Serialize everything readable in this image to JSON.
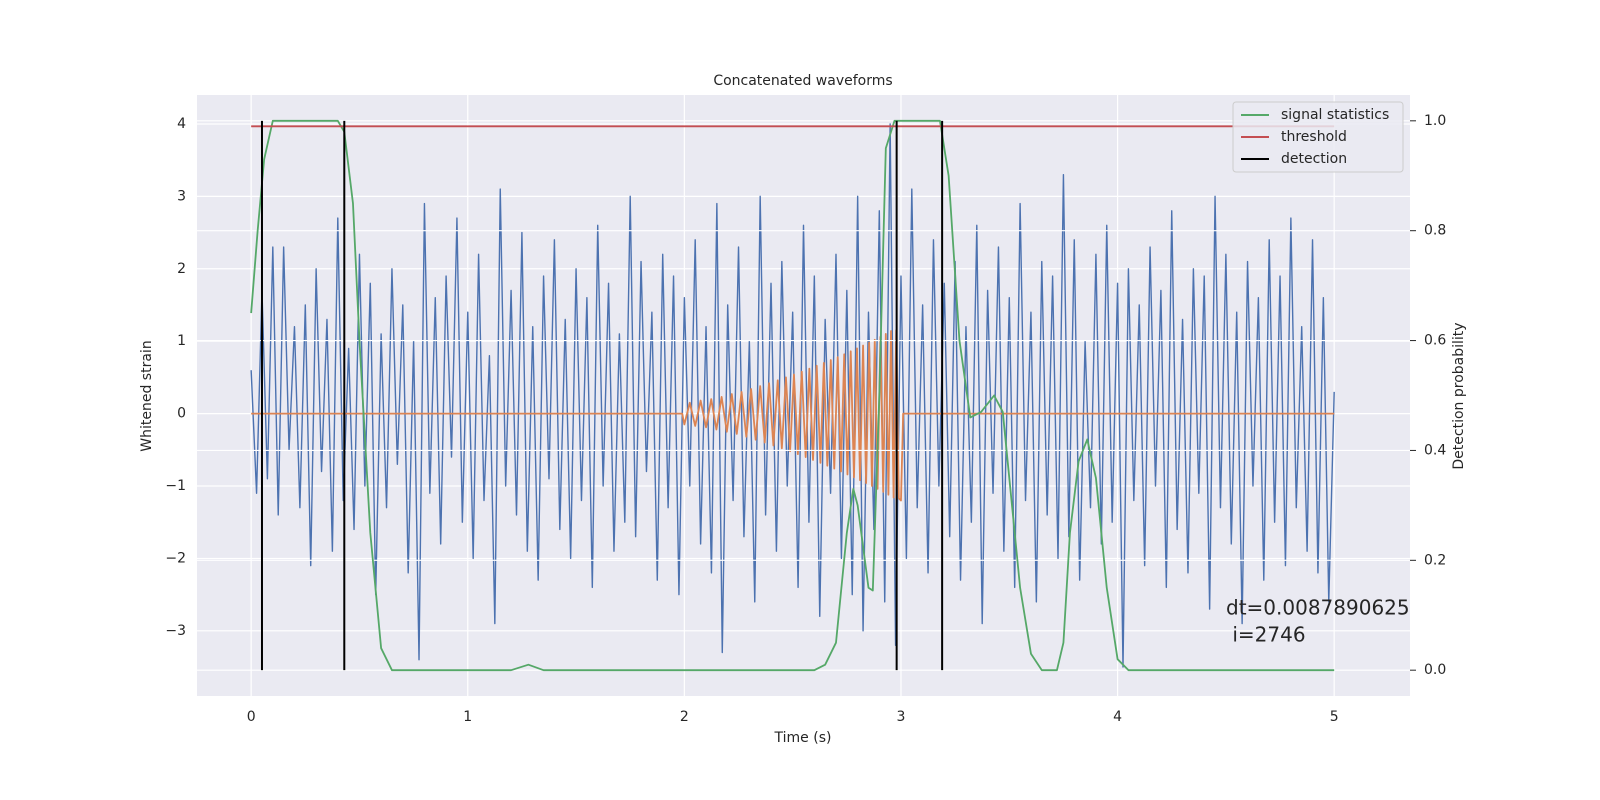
{
  "chart_data": {
    "type": "line",
    "title": "Concatenated waveforms",
    "xlabel": "Time (s)",
    "ylabel": "Whitened strain",
    "y2label": "Detection probability",
    "xlim": [
      -0.25,
      5.35
    ],
    "ylim": [
      -3.9,
      4.4
    ],
    "y2lim": [
      -0.047,
      1.047
    ],
    "xticks": [
      0,
      1,
      2,
      3,
      4,
      5
    ],
    "yticks": [
      {
        "value": -3,
        "label": "−3"
      },
      {
        "value": -2,
        "label": "−2"
      },
      {
        "value": -1,
        "label": "−1"
      },
      0,
      1,
      2,
      3,
      4
    ],
    "y2ticks": [
      {
        "value": 0,
        "label": "0.0"
      },
      {
        "value": 0.2,
        "label": "0.2"
      },
      {
        "value": 0.4,
        "label": "0.4"
      },
      {
        "value": 0.6,
        "label": "0.6"
      },
      {
        "value": 0.8,
        "label": "0.8"
      },
      {
        "value": 1,
        "label": "1.0"
      }
    ],
    "grid": true,
    "legend": "upper right",
    "annotation": [
      "dt=0.0087890625",
      " i=2746"
    ],
    "series": [
      {
        "color": "#4c72b0",
        "axis": "y",
        "x": [
          0,
          0.025,
          0.05,
          0.075,
          0.1,
          0.125,
          0.15,
          0.175,
          0.2,
          0.225,
          0.25,
          0.275,
          0.3,
          0.325,
          0.35,
          0.375,
          0.4,
          0.425,
          0.45,
          0.475,
          0.5,
          0.525,
          0.55,
          0.575,
          0.6,
          0.625,
          0.65,
          0.675,
          0.7,
          0.725,
          0.75,
          0.775,
          0.8,
          0.825,
          0.85,
          0.875,
          0.9,
          0.925,
          0.95,
          0.975,
          1,
          1.025,
          1.05,
          1.075,
          1.1,
          1.125,
          1.15,
          1.175,
          1.2,
          1.225,
          1.25,
          1.275,
          1.3,
          1.325,
          1.35,
          1.375,
          1.4,
          1.425,
          1.45,
          1.475,
          1.5,
          1.525,
          1.55,
          1.575,
          1.6,
          1.625,
          1.65,
          1.675,
          1.7,
          1.725,
          1.75,
          1.775,
          1.8,
          1.825,
          1.85,
          1.875,
          1.9,
          1.925,
          1.95,
          1.975,
          2,
          2.025,
          2.05,
          2.075,
          2.1,
          2.125,
          2.15,
          2.175,
          2.2,
          2.225,
          2.25,
          2.275,
          2.3,
          2.325,
          2.35,
          2.375,
          2.4,
          2.425,
          2.45,
          2.475,
          2.5,
          2.525,
          2.55,
          2.575,
          2.6,
          2.625,
          2.65,
          2.675,
          2.7,
          2.725,
          2.75,
          2.775,
          2.8,
          2.825,
          2.85,
          2.875,
          2.9,
          2.925,
          2.95,
          2.975,
          3,
          3.025,
          3.05,
          3.075,
          3.1,
          3.125,
          3.15,
          3.175,
          3.2,
          3.225,
          3.25,
          3.275,
          3.3,
          3.325,
          3.35,
          3.375,
          3.4,
          3.425,
          3.45,
          3.475,
          3.5,
          3.525,
          3.55,
          3.575,
          3.6,
          3.625,
          3.65,
          3.675,
          3.7,
          3.725,
          3.75,
          3.775,
          3.8,
          3.825,
          3.85,
          3.875,
          3.9,
          3.925,
          3.95,
          3.975,
          4,
          4.025,
          4.05,
          4.075,
          4.1,
          4.125,
          4.15,
          4.175,
          4.2,
          4.225,
          4.25,
          4.275,
          4.3,
          4.325,
          4.35,
          4.375,
          4.4,
          4.425,
          4.45,
          4.475,
          4.5,
          4.525,
          4.55,
          4.575,
          4.6,
          4.625,
          4.65,
          4.675,
          4.7,
          4.725,
          4.75,
          4.775,
          4.8,
          4.825,
          4.85,
          4.875,
          4.9,
          4.925,
          4.95,
          4.975,
          5
        ],
        "values": [
          0.6,
          -1.1,
          1.7,
          -0.9,
          2.3,
          -1.4,
          2.3,
          -0.5,
          1.2,
          -1.3,
          1.5,
          -2.1,
          2.0,
          -0.8,
          1.3,
          -1.9,
          2.7,
          -1.2,
          0.9,
          -1.6,
          2.2,
          -1.0,
          1.8,
          -2.5,
          1.1,
          -1.3,
          2.0,
          -0.7,
          1.5,
          -2.2,
          1.0,
          -3.4,
          2.9,
          -1.1,
          1.6,
          -1.8,
          1.9,
          -0.6,
          2.7,
          -1.5,
          1.4,
          -2.0,
          2.2,
          -1.2,
          0.8,
          -2.9,
          3.1,
          -1.0,
          1.7,
          -1.4,
          2.5,
          -1.9,
          1.2,
          -2.3,
          1.9,
          -0.9,
          2.4,
          -1.6,
          1.3,
          -2.0,
          2.0,
          -1.2,
          1.6,
          -2.4,
          2.6,
          -1.0,
          1.8,
          -1.9,
          1.1,
          -1.5,
          3.0,
          -1.7,
          2.1,
          -0.8,
          1.4,
          -2.3,
          2.2,
          -1.3,
          1.9,
          -2.5,
          1.6,
          -1.0,
          2.4,
          -1.8,
          1.2,
          -2.2,
          2.9,
          -3.3,
          1.5,
          -1.2,
          2.3,
          -1.7,
          1.0,
          -2.6,
          3.0,
          -1.4,
          1.8,
          -1.9,
          2.1,
          -1.0,
          1.4,
          -2.4,
          2.6,
          -1.5,
          1.9,
          -2.8,
          1.3,
          -1.1,
          2.2,
          -2.0,
          1.7,
          -2.5,
          3.0,
          -3.0,
          1.4,
          -1.6,
          2.8,
          -2.6,
          4.0,
          -3.2,
          1.9,
          -2.0,
          3.1,
          -1.3,
          1.5,
          -2.2,
          2.4,
          -1.0,
          1.8,
          -1.7,
          2.1,
          -2.3,
          1.2,
          -1.5,
          2.6,
          -2.9,
          1.7,
          -1.1,
          2.3,
          -1.9,
          1.6,
          -2.4,
          2.9,
          -1.2,
          1.4,
          -2.6,
          2.1,
          -1.4,
          1.9,
          -2.0,
          3.3,
          -1.7,
          2.4,
          -2.3,
          1.0,
          -1.3,
          2.2,
          -1.8,
          2.6,
          -1.5,
          1.8,
          -3.5,
          2.0,
          -1.2,
          1.5,
          -2.1,
          2.3,
          -1.0,
          1.7,
          -2.4,
          2.8,
          -1.6,
          1.3,
          -2.2,
          2.0,
          -1.1,
          1.9,
          -2.7,
          3.0,
          -1.3,
          2.2,
          -1.8,
          1.4,
          -2.9,
          2.1,
          -1.0,
          1.6,
          -2.3,
          2.4,
          -1.5,
          1.9,
          -2.1,
          2.7,
          -1.3,
          1.2,
          -1.9,
          2.4,
          -2.2,
          1.6,
          -2.6,
          0.3
        ]
      },
      {
        "color": "#dd8452",
        "axis": "y",
        "x": [
          0,
          1.99,
          2.0,
          2.025,
          2.05,
          2.075,
          2.1,
          2.124,
          2.148,
          2.172,
          2.196,
          2.219,
          2.242,
          2.264,
          2.286,
          2.308,
          2.329,
          2.35,
          2.371,
          2.391,
          2.411,
          2.431,
          2.45,
          2.469,
          2.488,
          2.506,
          2.524,
          2.542,
          2.56,
          2.577,
          2.594,
          2.611,
          2.628,
          2.644,
          2.66,
          2.676,
          2.692,
          2.708,
          2.723,
          2.738,
          2.753,
          2.768,
          2.783,
          2.797,
          2.811,
          2.825,
          2.839,
          2.853,
          2.866,
          2.879,
          2.892,
          2.905,
          2.918,
          2.93,
          2.942,
          2.954,
          2.966,
          2.978,
          2.99,
          3.0,
          3.01,
          5
        ],
        "values": [
          0,
          0,
          -0.15,
          0.15,
          -0.17,
          0.18,
          -0.19,
          0.2,
          -0.22,
          0.23,
          -0.25,
          0.27,
          -0.28,
          0.3,
          -0.32,
          0.34,
          -0.36,
          0.38,
          -0.4,
          0.42,
          -0.44,
          0.46,
          -0.48,
          0.5,
          -0.52,
          0.54,
          -0.56,
          0.58,
          -0.6,
          0.62,
          -0.64,
          0.66,
          -0.68,
          0.7,
          -0.72,
          0.74,
          -0.76,
          0.78,
          -0.8,
          0.82,
          -0.84,
          0.86,
          -0.88,
          0.9,
          -0.92,
          0.94,
          -0.96,
          0.98,
          -1.0,
          1.02,
          -1.04,
          1.06,
          -1.08,
          1.1,
          -1.12,
          1.14,
          -1.16,
          1.15,
          -1.17,
          -1.2,
          0,
          0
        ]
      },
      {
        "name": "signal statistics",
        "color": "#55a868",
        "axis": "y2",
        "x": [
          0,
          0.03,
          0.06,
          0.1,
          0.2,
          0.4,
          0.43,
          0.47,
          0.5,
          0.55,
          0.6,
          0.65,
          0.8,
          1.2,
          1.28,
          1.35,
          2.0,
          2.6,
          2.65,
          2.7,
          2.75,
          2.78,
          2.8,
          2.85,
          2.87,
          2.9,
          2.93,
          2.97,
          3.1,
          3.18,
          3.22,
          3.27,
          3.32,
          3.37,
          3.43,
          3.47,
          3.5,
          3.55,
          3.6,
          3.65,
          3.72,
          3.75,
          3.78,
          3.82,
          3.86,
          3.9,
          3.95,
          4.0,
          4.05,
          4.2,
          5.0
        ],
        "values": [
          0.65,
          0.8,
          0.93,
          1.0,
          1.0,
          1.0,
          0.98,
          0.85,
          0.6,
          0.25,
          0.04,
          0.0,
          0.0,
          0.0,
          0.01,
          0.0,
          0.0,
          0.0,
          0.01,
          0.05,
          0.25,
          0.33,
          0.3,
          0.15,
          0.145,
          0.5,
          0.95,
          1.0,
          1.0,
          1.0,
          0.9,
          0.6,
          0.46,
          0.47,
          0.5,
          0.47,
          0.35,
          0.15,
          0.03,
          0.0,
          0.0,
          0.05,
          0.25,
          0.38,
          0.42,
          0.35,
          0.15,
          0.02,
          0.0,
          0.0,
          0.0
        ]
      },
      {
        "name": "threshold",
        "color": "#c44e52",
        "axis": "y2",
        "x": [
          0,
          5
        ],
        "values": [
          0.99,
          0.99
        ]
      },
      {
        "name": "detection",
        "color": "#000000",
        "axis": "y2",
        "style": "vlines",
        "x": [
          0.05,
          0.43,
          2.98,
          3.19
        ],
        "values": [
          1,
          1,
          1,
          1
        ]
      }
    ]
  }
}
